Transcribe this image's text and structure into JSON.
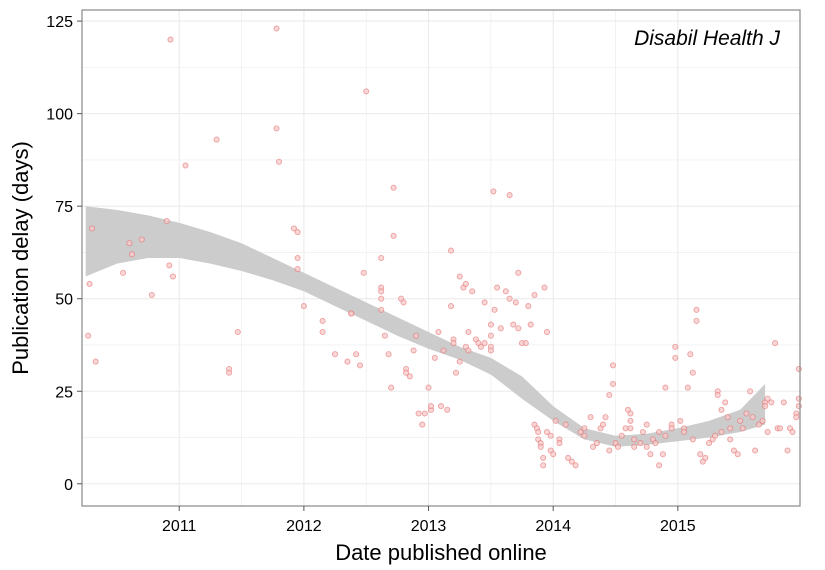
{
  "chart_data": {
    "type": "scatter",
    "annotation": "Disabil Health J",
    "xlabel": "Date published online",
    "ylabel": "Publication delay (days)",
    "xlim": [
      2010.22,
      2015.98
    ],
    "ylim": [
      -6,
      128
    ],
    "x_ticks": [
      2011,
      2012,
      2013,
      2014,
      2015
    ],
    "x_tick_labels": [
      "2011",
      "2012",
      "2013",
      "2014",
      "2015"
    ],
    "y_ticks": [
      0,
      25,
      50,
      75,
      100,
      125
    ],
    "y_tick_labels": [
      "0",
      "25",
      "50",
      "75",
      "100",
      "125"
    ],
    "grid": true,
    "colors": {
      "point_fill": "#f8c9c9",
      "point_stroke": "#e06666",
      "band": "#cccccc",
      "grid": "#ebebeb",
      "border": "#888888"
    },
    "smooth_band": {
      "x": [
        2010.25,
        2010.5,
        2010.75,
        2011.0,
        2011.25,
        2011.5,
        2011.75,
        2012.0,
        2012.25,
        2012.5,
        2012.75,
        2013.0,
        2013.25,
        2013.5,
        2013.75,
        2014.0,
        2014.25,
        2014.5,
        2014.75,
        2015.0,
        2015.25,
        2015.5,
        2015.7
      ],
      "upper": [
        75,
        74,
        72.5,
        70.5,
        68,
        65,
        61,
        57,
        53,
        49,
        45,
        41,
        37,
        34,
        29,
        21,
        15,
        13,
        13.5,
        15,
        17,
        20,
        27
      ],
      "lower": [
        56,
        59.5,
        61,
        61,
        59.5,
        57.5,
        55,
        52,
        48,
        44,
        40,
        36.5,
        33.5,
        29.5,
        23,
        17,
        12,
        10,
        10.5,
        11.5,
        12.5,
        14,
        16
      ]
    },
    "series": [
      {
        "points": [
          [
            2010.3,
            69
          ],
          [
            2010.28,
            54
          ],
          [
            2010.27,
            40
          ],
          [
            2010.33,
            33
          ],
          [
            2010.55,
            57
          ],
          [
            2010.6,
            65
          ],
          [
            2010.62,
            62
          ],
          [
            2010.7,
            66
          ],
          [
            2010.78,
            51
          ],
          [
            2010.9,
            71
          ],
          [
            2010.92,
            59
          ],
          [
            2010.95,
            56
          ],
          [
            2010.93,
            120
          ],
          [
            2011.05,
            86
          ],
          [
            2011.3,
            93
          ],
          [
            2011.4,
            31
          ],
          [
            2011.4,
            30
          ],
          [
            2011.47,
            41
          ],
          [
            2011.78,
            123
          ],
          [
            2011.78,
            96
          ],
          [
            2011.8,
            87
          ],
          [
            2011.92,
            69
          ],
          [
            2011.95,
            68
          ],
          [
            2011.95,
            61
          ],
          [
            2011.95,
            58
          ],
          [
            2012.0,
            48
          ],
          [
            2012.15,
            44
          ],
          [
            2012.15,
            41
          ],
          [
            2012.25,
            35
          ],
          [
            2012.35,
            33
          ],
          [
            2012.38,
            46
          ],
          [
            2012.38,
            46
          ],
          [
            2012.42,
            35
          ],
          [
            2012.45,
            32
          ],
          [
            2012.48,
            57
          ],
          [
            2012.5,
            106
          ],
          [
            2012.62,
            61
          ],
          [
            2012.62,
            53
          ],
          [
            2012.62,
            52
          ],
          [
            2012.62,
            50
          ],
          [
            2012.62,
            47
          ],
          [
            2012.65,
            40
          ],
          [
            2012.68,
            35
          ],
          [
            2012.7,
            26
          ],
          [
            2012.72,
            80
          ],
          [
            2012.72,
            67
          ],
          [
            2012.78,
            50
          ],
          [
            2012.8,
            49
          ],
          [
            2012.82,
            31
          ],
          [
            2012.82,
            30
          ],
          [
            2012.85,
            29
          ],
          [
            2012.88,
            36
          ],
          [
            2012.9,
            40
          ],
          [
            2012.92,
            19
          ],
          [
            2012.95,
            16
          ],
          [
            2012.97,
            19
          ],
          [
            2013.0,
            26
          ],
          [
            2013.02,
            20
          ],
          [
            2013.02,
            21
          ],
          [
            2013.05,
            34
          ],
          [
            2013.08,
            41
          ],
          [
            2013.1,
            21
          ],
          [
            2013.12,
            36
          ],
          [
            2013.15,
            20
          ],
          [
            2013.18,
            48
          ],
          [
            2013.18,
            63
          ],
          [
            2013.2,
            39
          ],
          [
            2013.2,
            38
          ],
          [
            2013.22,
            30
          ],
          [
            2013.25,
            33
          ],
          [
            2013.25,
            56
          ],
          [
            2013.28,
            53
          ],
          [
            2013.3,
            54
          ],
          [
            2013.3,
            37
          ],
          [
            2013.32,
            36
          ],
          [
            2013.32,
            41
          ],
          [
            2013.35,
            52
          ],
          [
            2013.38,
            39
          ],
          [
            2013.4,
            38
          ],
          [
            2013.42,
            37
          ],
          [
            2013.45,
            38
          ],
          [
            2013.45,
            49
          ],
          [
            2013.5,
            43
          ],
          [
            2013.5,
            40
          ],
          [
            2013.5,
            37
          ],
          [
            2013.5,
            36
          ],
          [
            2013.52,
            79
          ],
          [
            2013.53,
            47
          ],
          [
            2013.55,
            53
          ],
          [
            2013.58,
            42
          ],
          [
            2013.62,
            52
          ],
          [
            2013.65,
            78
          ],
          [
            2013.65,
            50
          ],
          [
            2013.68,
            43
          ],
          [
            2013.7,
            49
          ],
          [
            2013.72,
            57
          ],
          [
            2013.72,
            42
          ],
          [
            2013.75,
            38
          ],
          [
            2013.78,
            38
          ],
          [
            2013.8,
            48
          ],
          [
            2013.82,
            43
          ],
          [
            2013.85,
            51
          ],
          [
            2013.85,
            16
          ],
          [
            2013.87,
            15
          ],
          [
            2013.88,
            14
          ],
          [
            2013.88,
            12
          ],
          [
            2013.9,
            11
          ],
          [
            2013.9,
            10
          ],
          [
            2013.92,
            7
          ],
          [
            2013.92,
            5
          ],
          [
            2013.93,
            53
          ],
          [
            2013.95,
            41
          ],
          [
            2013.95,
            14
          ],
          [
            2013.98,
            13
          ],
          [
            2013.98,
            9
          ],
          [
            2014.0,
            8
          ],
          [
            2014.02,
            17
          ],
          [
            2014.05,
            12
          ],
          [
            2014.05,
            11
          ],
          [
            2014.1,
            16
          ],
          [
            2014.12,
            7
          ],
          [
            2014.15,
            6
          ],
          [
            2014.18,
            5
          ],
          [
            2014.22,
            14
          ],
          [
            2014.25,
            15
          ],
          [
            2014.25,
            13
          ],
          [
            2014.3,
            18
          ],
          [
            2014.32,
            10
          ],
          [
            2014.35,
            11
          ],
          [
            2014.38,
            15
          ],
          [
            2014.4,
            16
          ],
          [
            2014.42,
            18
          ],
          [
            2014.45,
            9
          ],
          [
            2014.45,
            24
          ],
          [
            2014.48,
            27
          ],
          [
            2014.48,
            32
          ],
          [
            2014.5,
            11
          ],
          [
            2014.52,
            10
          ],
          [
            2014.55,
            13
          ],
          [
            2014.58,
            15
          ],
          [
            2014.6,
            20
          ],
          [
            2014.62,
            19
          ],
          [
            2014.62,
            17
          ],
          [
            2014.62,
            15
          ],
          [
            2014.65,
            12
          ],
          [
            2014.65,
            10
          ],
          [
            2014.7,
            11
          ],
          [
            2014.72,
            14
          ],
          [
            2014.75,
            16
          ],
          [
            2014.75,
            10
          ],
          [
            2014.78,
            8
          ],
          [
            2014.8,
            12
          ],
          [
            2014.82,
            11
          ],
          [
            2014.85,
            14
          ],
          [
            2014.85,
            5
          ],
          [
            2014.88,
            8
          ],
          [
            2014.9,
            26
          ],
          [
            2014.9,
            13
          ],
          [
            2014.95,
            16
          ],
          [
            2014.95,
            15
          ],
          [
            2014.98,
            37
          ],
          [
            2014.98,
            34
          ],
          [
            2015.02,
            17
          ],
          [
            2015.05,
            15
          ],
          [
            2015.05,
            14
          ],
          [
            2015.08,
            26
          ],
          [
            2015.1,
            35
          ],
          [
            2015.12,
            30
          ],
          [
            2015.12,
            12
          ],
          [
            2015.15,
            47
          ],
          [
            2015.15,
            44
          ],
          [
            2015.18,
            8
          ],
          [
            2015.2,
            6
          ],
          [
            2015.22,
            7
          ],
          [
            2015.25,
            11
          ],
          [
            2015.28,
            12
          ],
          [
            2015.3,
            13
          ],
          [
            2015.32,
            25
          ],
          [
            2015.32,
            24
          ],
          [
            2015.35,
            20
          ],
          [
            2015.35,
            14
          ],
          [
            2015.38,
            22
          ],
          [
            2015.4,
            18
          ],
          [
            2015.42,
            15
          ],
          [
            2015.42,
            12
          ],
          [
            2015.45,
            9
          ],
          [
            2015.48,
            8
          ],
          [
            2015.5,
            17
          ],
          [
            2015.52,
            15
          ],
          [
            2015.55,
            19
          ],
          [
            2015.58,
            25
          ],
          [
            2015.6,
            18
          ],
          [
            2015.62,
            9
          ],
          [
            2015.65,
            16
          ],
          [
            2015.68,
            17
          ],
          [
            2015.7,
            22
          ],
          [
            2015.7,
            21
          ],
          [
            2015.72,
            23
          ],
          [
            2015.72,
            14
          ],
          [
            2015.75,
            22
          ],
          [
            2015.78,
            38
          ],
          [
            2015.8,
            15
          ],
          [
            2015.82,
            15
          ],
          [
            2015.85,
            22
          ],
          [
            2015.88,
            9
          ],
          [
            2015.9,
            15
          ],
          [
            2015.92,
            14
          ],
          [
            2015.95,
            19
          ],
          [
            2015.95,
            18
          ],
          [
            2015.97,
            23
          ],
          [
            2015.97,
            21
          ],
          [
            2015.97,
            31
          ]
        ]
      }
    ]
  }
}
